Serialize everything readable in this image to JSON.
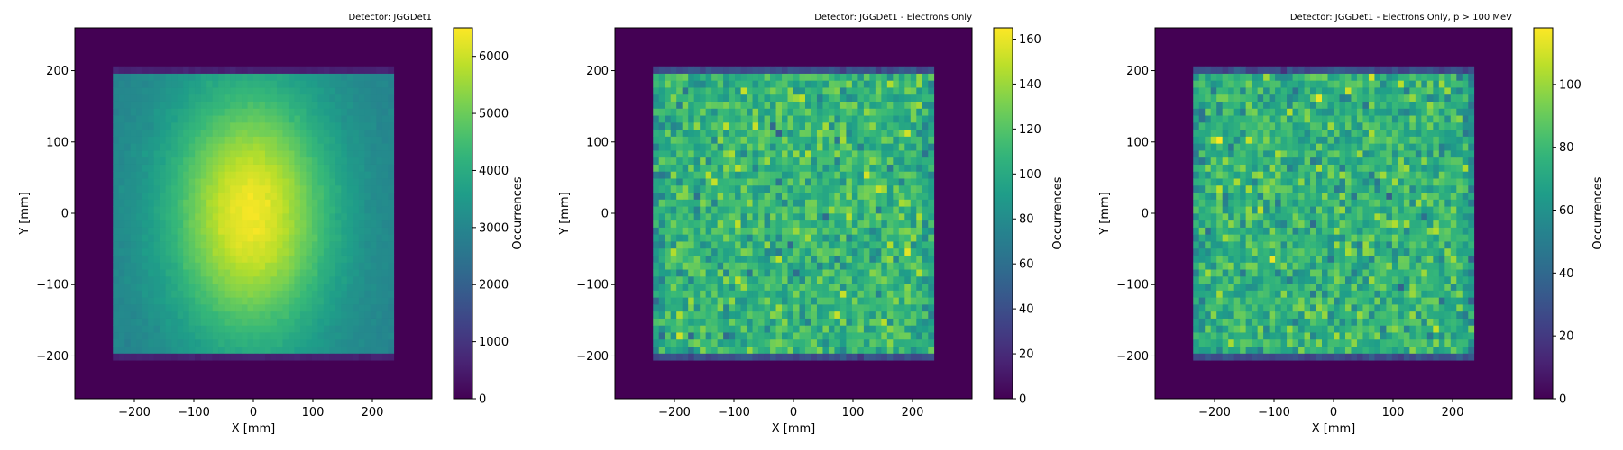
{
  "chart_data": [
    {
      "type": "heatmap",
      "title": "Detector: JGGDet1",
      "xlabel": "X [mm]",
      "ylabel": "Y [mm]",
      "colorbar_label": "Occurrences",
      "xlim": [
        -300,
        300
      ],
      "ylim": [
        -260,
        260
      ],
      "xticks": [
        -200,
        -100,
        0,
        100,
        200
      ],
      "yticks": [
        -200,
        -100,
        0,
        100,
        200
      ],
      "xtick_labels": [
        "−200",
        "−100",
        "0",
        "100",
        "200"
      ],
      "ytick_labels": [
        "−200",
        "−100",
        "0",
        "100",
        "200"
      ],
      "colorbar_range": [
        0,
        6500
      ],
      "colorbar_ticks": [
        0,
        1000,
        2000,
        3000,
        4000,
        5000,
        6000
      ],
      "colorbar_tick_labels": [
        "0",
        "1000",
        "2000",
        "3000",
        "4000",
        "5000",
        "6000"
      ],
      "colormap": "viridis",
      "detector_region": {
        "x": [
          -236,
          236
        ],
        "y": [
          -206,
          206
        ]
      },
      "bins": [
        48,
        42
      ],
      "model": "gaussian",
      "peak_value": 6400,
      "peak_center": [
        -5,
        0
      ],
      "spread": [
        95,
        125
      ],
      "baseline": 2900,
      "edge_value": 600
    },
    {
      "type": "heatmap",
      "title": "Detector: JGGDet1 - Electrons Only",
      "xlabel": "X [mm]",
      "ylabel": "Y [mm]",
      "colorbar_label": "Occurrences",
      "xlim": [
        -300,
        300
      ],
      "ylim": [
        -260,
        260
      ],
      "xticks": [
        -200,
        -100,
        0,
        100,
        200
      ],
      "yticks": [
        -200,
        -100,
        0,
        100,
        200
      ],
      "xtick_labels": [
        "−200",
        "−100",
        "0",
        "100",
        "200"
      ],
      "ytick_labels": [
        "−200",
        "−100",
        "0",
        "100",
        "200"
      ],
      "colorbar_range": [
        0,
        165
      ],
      "colorbar_ticks": [
        0,
        20,
        40,
        60,
        80,
        100,
        120,
        140,
        160
      ],
      "colorbar_tick_labels": [
        "0",
        "20",
        "40",
        "60",
        "80",
        "100",
        "120",
        "140",
        "160"
      ],
      "colormap": "viridis",
      "detector_region": {
        "x": [
          -236,
          236
        ],
        "y": [
          -206,
          206
        ]
      },
      "bins": [
        48,
        42
      ],
      "model": "noisy-flat",
      "mean_value": 108,
      "noise": 16,
      "edge_value": 40
    },
    {
      "type": "heatmap",
      "title": "Detector: JGGDet1 - Electrons Only, p > 100 MeV",
      "xlabel": "X [mm]",
      "ylabel": "Y [mm]",
      "colorbar_label": "Occurrences",
      "xlim": [
        -300,
        300
      ],
      "ylim": [
        -260,
        260
      ],
      "xticks": [
        -200,
        -100,
        0,
        100,
        200
      ],
      "yticks": [
        -200,
        -100,
        0,
        100,
        200
      ],
      "xtick_labels": [
        "−200",
        "−100",
        "0",
        "100",
        "200"
      ],
      "ytick_labels": [
        "−200",
        "−100",
        "0",
        "100",
        "200"
      ],
      "colorbar_range": [
        0,
        118
      ],
      "colorbar_ticks": [
        0,
        20,
        40,
        60,
        80,
        100
      ],
      "colorbar_tick_labels": [
        "0",
        "20",
        "40",
        "60",
        "80",
        "100"
      ],
      "colormap": "viridis",
      "detector_region": {
        "x": [
          -236,
          236
        ],
        "y": [
          -206,
          206
        ]
      },
      "bins": [
        48,
        42
      ],
      "model": "noisy-flat",
      "mean_value": 76,
      "noise": 12,
      "edge_value": 28
    }
  ]
}
